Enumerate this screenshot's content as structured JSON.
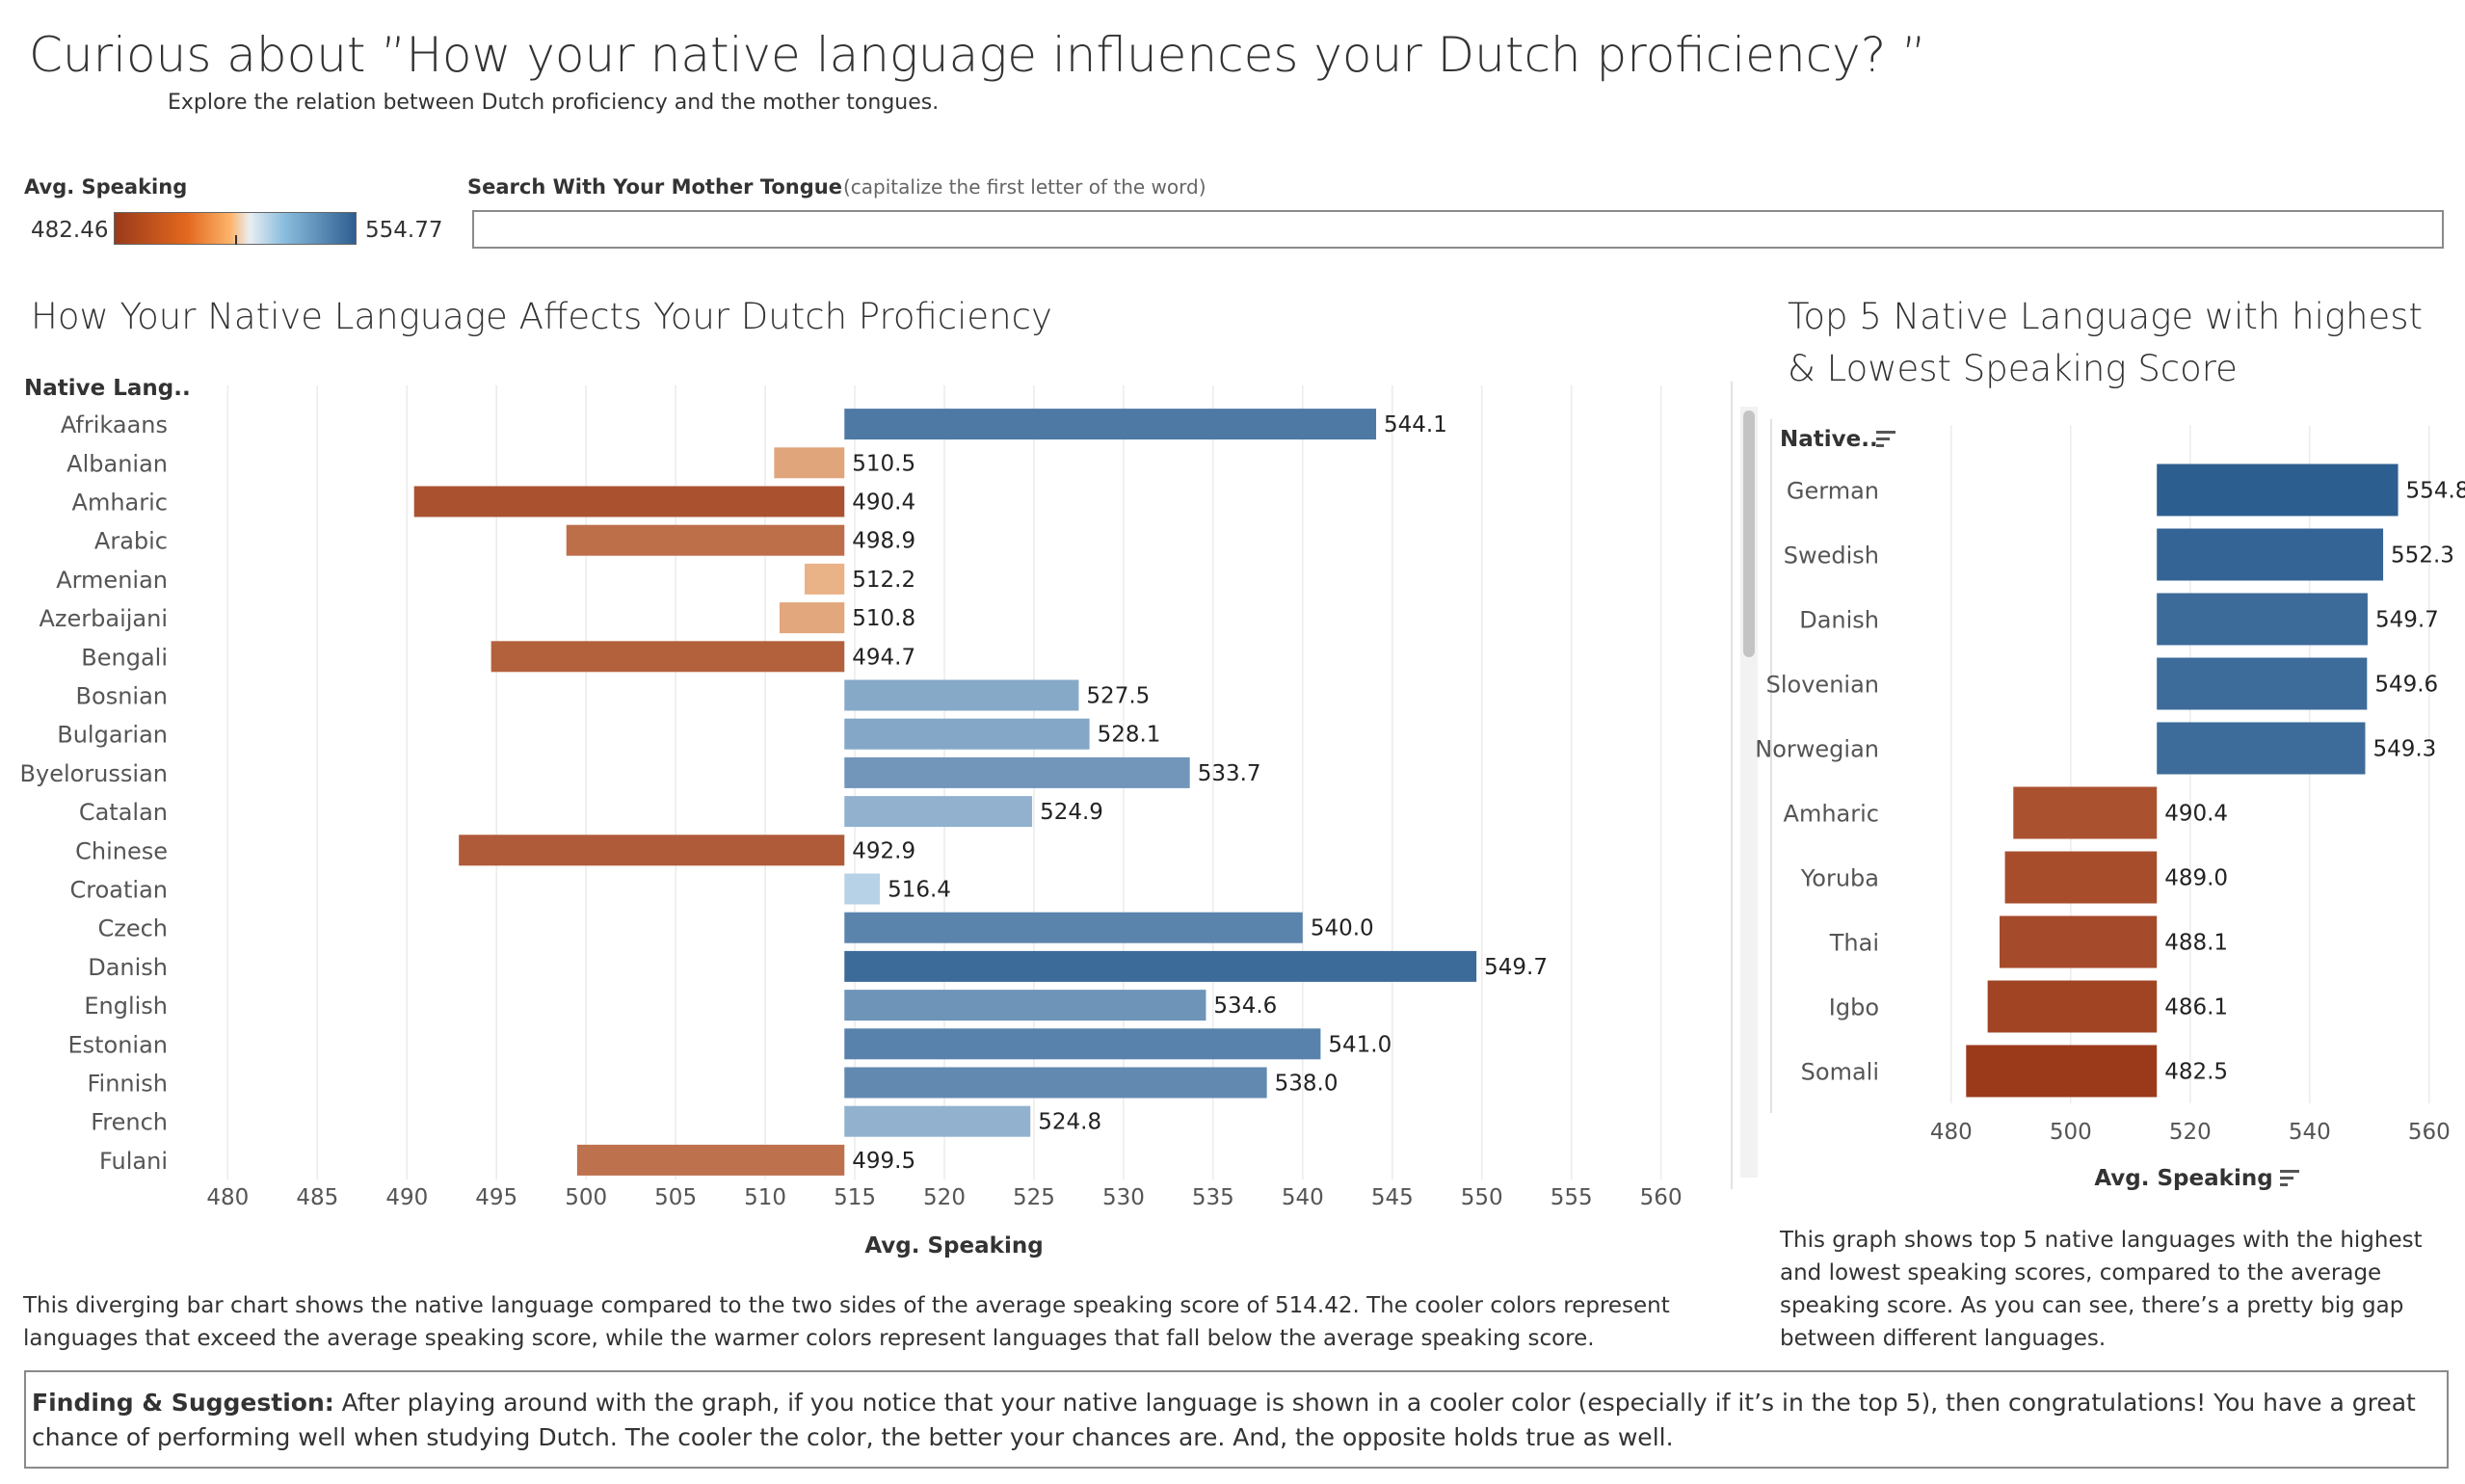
{
  "header": {
    "title": "Curious about ”How your native language influences your Dutch proficiency? ”",
    "subtitle": "Explore the relation between Dutch proficiency and the mother tongues."
  },
  "legend": {
    "title": "Avg. Speaking",
    "min": "482.46",
    "max": "554.77",
    "colors": {
      "low": "#9a3a1b",
      "mid_low": "#fdb36b",
      "mid_high": "#8cbedf",
      "high": "#2d5e90"
    }
  },
  "search": {
    "label": "Search With Your  Mother Tongue",
    "hint": "(capitalize the first letter of the word)",
    "value": "",
    "placeholder": ""
  },
  "chart_data": [
    {
      "type": "bar",
      "orientation": "horizontal",
      "title": "How Your Native Language Affects Your Dutch Proficiency",
      "ylabel": "Native Lang..",
      "xlabel": "Avg. Speaking",
      "baseline": 514.42,
      "xlim": [
        476,
        564
      ],
      "xticks": [
        480,
        485,
        490,
        495,
        500,
        505,
        510,
        515,
        520,
        525,
        530,
        535,
        540,
        545,
        550,
        555,
        560
      ],
      "grid": true,
      "categories": [
        "Afrikaans",
        "Albanian",
        "Amharic",
        "Arabic",
        "Armenian",
        "Azerbaijani",
        "Bengali",
        "Bosnian",
        "Bulgarian",
        "Byelorussian",
        "Catalan",
        "Chinese",
        "Croatian",
        "Czech",
        "Danish",
        "English",
        "Estonian",
        "Finnish",
        "French",
        "Fulani"
      ],
      "values": [
        544.1,
        510.5,
        490.4,
        498.9,
        512.2,
        510.8,
        494.7,
        527.5,
        528.1,
        533.7,
        524.9,
        492.9,
        516.4,
        540.0,
        549.7,
        534.6,
        541.0,
        538.0,
        524.8,
        499.5
      ],
      "labels": [
        "544.1",
        "510.5",
        "490.4",
        "498.9",
        "512.2",
        "510.8",
        "494.7",
        "527.5",
        "528.1",
        "533.7",
        "524.9",
        "492.9",
        "516.4",
        "540.0",
        "549.7",
        "534.6",
        "541.0",
        "538.0",
        "524.8",
        "499.5"
      ]
    },
    {
      "type": "bar",
      "orientation": "horizontal",
      "title": "Top 5 Native Language with highest & Lowest Speaking Score",
      "ylabel": "Native..",
      "xlabel": "Avg. Speaking",
      "baseline": 514.42,
      "xlim": [
        476,
        566
      ],
      "xticks": [
        480,
        500,
        520,
        540,
        560
      ],
      "grid": true,
      "categories": [
        "German",
        "Swedish",
        "Danish",
        "Slovenian",
        "Norwegian",
        "Amharic",
        "Yoruba",
        "Thai",
        "Igbo",
        "Somali"
      ],
      "values": [
        554.8,
        552.3,
        549.7,
        549.6,
        549.3,
        490.4,
        489.0,
        488.1,
        486.1,
        482.5
      ],
      "labels": [
        "554.8",
        "552.3",
        "549.7",
        "549.6",
        "549.3",
        "490.4",
        "489.0",
        "488.1",
        "486.1",
        "482.5"
      ]
    }
  ],
  "descriptions": {
    "main": "This diverging bar chart shows the native language compared to the two sides of the average speaking score of 514.42. The cooler colors represent languages that exceed the average speaking score, while the warmer colors represent languages that fall below the average speaking score.",
    "side": "This graph shows top 5 native languages with the highest and lowest speaking scores, compared to the average speaking score. As you can see, there’s a pretty big gap between different languages."
  },
  "finding": {
    "label": "Finding & Suggestion:",
    "text": " After playing around with the graph, if you notice that your native language is shown in a cooler color (especially if it’s in the top 5), then congratulations! You have a great chance of performing well when studying Dutch. The cooler the color, the better your chances are. And, the opposite holds true as well."
  },
  "icons": {
    "sort": "sort-descending-icon"
  }
}
